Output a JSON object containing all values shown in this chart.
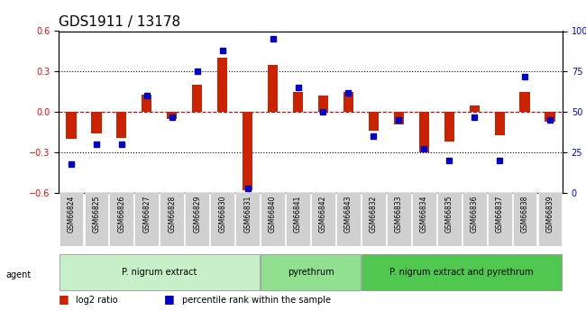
{
  "title": "GDS1911 / 13178",
  "samples": [
    "GSM66824",
    "GSM66825",
    "GSM66826",
    "GSM66827",
    "GSM66828",
    "GSM66829",
    "GSM66830",
    "GSM66831",
    "GSM66840",
    "GSM66841",
    "GSM66842",
    "GSM66843",
    "GSM66832",
    "GSM66833",
    "GSM66834",
    "GSM66835",
    "GSM66836",
    "GSM66837",
    "GSM66838",
    "GSM66839"
  ],
  "log2_ratio": [
    -0.2,
    -0.16,
    -0.19,
    0.13,
    -0.05,
    0.2,
    0.4,
    -0.58,
    0.35,
    0.15,
    0.12,
    0.15,
    -0.14,
    -0.09,
    -0.3,
    -0.22,
    0.05,
    -0.17,
    0.15,
    -0.07
  ],
  "pct_rank": [
    18,
    30,
    30,
    60,
    47,
    75,
    88,
    3,
    95,
    65,
    50,
    62,
    35,
    45,
    27,
    20,
    47,
    20,
    72,
    45
  ],
  "groups": [
    {
      "label": "P. nigrum extract",
      "start": 0,
      "end": 7,
      "color": "#c8f0c8"
    },
    {
      "label": "pyrethrum",
      "start": 8,
      "end": 11,
      "color": "#90e090"
    },
    {
      "label": "P. nigrum extract and pyrethrum",
      "start": 12,
      "end": 19,
      "color": "#50c850"
    }
  ],
  "ylim_left": [
    -0.6,
    0.6
  ],
  "ylim_right": [
    0,
    100
  ],
  "yticks_left": [
    -0.6,
    -0.3,
    0.0,
    0.3,
    0.6
  ],
  "yticks_right": [
    0,
    25,
    50,
    75,
    100
  ],
  "bar_color": "#cc2200",
  "dot_color": "#0000cc",
  "zero_line_color": "#cc0000",
  "grid_color": "#000000",
  "bg_color": "#ffffff",
  "plot_bg": "#f5f5f5"
}
